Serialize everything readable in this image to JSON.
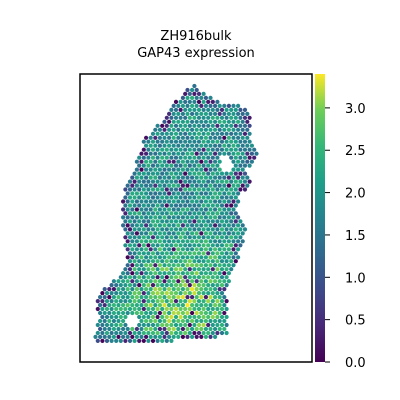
{
  "chart_data": {
    "type": "scatter",
    "title_lines": [
      "ZH916bulk",
      "GAP43 expression"
    ],
    "xlabel": "",
    "ylabel": "",
    "grid": false,
    "legend": "colorbar-right",
    "colormap": "viridis",
    "color_range": [
      0.0,
      3.4
    ],
    "colorbar_ticks": [
      {
        "value": 0.0,
        "label": "0.0"
      },
      {
        "value": 0.5,
        "label": "0.5"
      },
      {
        "value": 1.0,
        "label": "1.0"
      },
      {
        "value": 1.5,
        "label": "1.5"
      },
      {
        "value": 2.0,
        "label": "2.0"
      },
      {
        "value": 2.5,
        "label": "2.5"
      },
      {
        "value": 3.0,
        "label": "3.0"
      }
    ],
    "tissue_outline": [
      [
        0.42,
        0.09
      ],
      [
        0.45,
        0.05
      ],
      [
        0.49,
        0.04
      ],
      [
        0.55,
        0.07
      ],
      [
        0.6,
        0.1
      ],
      [
        0.7,
        0.11
      ],
      [
        0.74,
        0.14
      ],
      [
        0.73,
        0.22
      ],
      [
        0.77,
        0.28
      ],
      [
        0.72,
        0.33
      ],
      [
        0.74,
        0.38
      ],
      [
        0.69,
        0.42
      ],
      [
        0.67,
        0.48
      ],
      [
        0.72,
        0.52
      ],
      [
        0.69,
        0.62
      ],
      [
        0.66,
        0.68
      ],
      [
        0.63,
        0.75
      ],
      [
        0.64,
        0.83
      ],
      [
        0.64,
        0.91
      ],
      [
        0.35,
        0.93
      ],
      [
        0.06,
        0.93
      ],
      [
        0.08,
        0.86
      ],
      [
        0.07,
        0.78
      ],
      [
        0.12,
        0.73
      ],
      [
        0.18,
        0.7
      ],
      [
        0.2,
        0.66
      ],
      [
        0.19,
        0.57
      ],
      [
        0.18,
        0.48
      ],
      [
        0.19,
        0.4
      ],
      [
        0.24,
        0.31
      ],
      [
        0.28,
        0.22
      ],
      [
        0.33,
        0.18
      ],
      [
        0.37,
        0.15
      ],
      [
        0.4,
        0.11
      ]
    ],
    "white_holes": [
      {
        "center": [
          0.63,
          0.31
        ],
        "radius": [
          0.025,
          0.035
        ]
      },
      {
        "center": [
          0.23,
          0.86
        ],
        "radius": [
          0.03,
          0.02
        ]
      }
    ],
    "spot_expression_model": {
      "base": 1.9,
      "hotspot_high": {
        "center": [
          0.45,
          0.78
        ],
        "boost": 1.0
      },
      "edge_low": 1.6,
      "noise": 0.55,
      "dark_spot_fraction": 0.06
    }
  }
}
